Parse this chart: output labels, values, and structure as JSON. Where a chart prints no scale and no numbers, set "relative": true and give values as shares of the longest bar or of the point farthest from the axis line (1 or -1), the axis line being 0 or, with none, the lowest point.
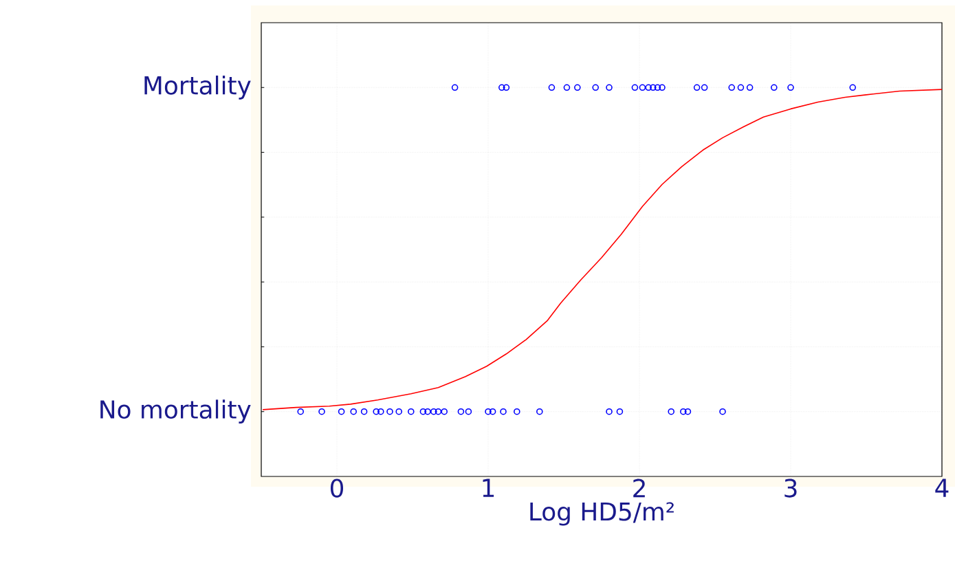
{
  "chart_data": {
    "type": "scatter",
    "xlabel": "Log HD5/m²",
    "xlim": [
      -0.5,
      4
    ],
    "xticks": [
      0,
      1,
      2,
      3,
      4
    ],
    "relative": true,
    "annotations": [
      "Mortality",
      "No mortality"
    ],
    "grid": true,
    "marker": "circle",
    "series": [
      {
        "color": "#0000ff",
        "x": [
          0.78,
          1.09,
          1.12,
          1.42,
          1.52,
          1.59,
          1.71,
          1.8,
          1.97,
          2.02,
          2.06,
          2.09,
          2.12,
          2.15,
          2.38,
          2.43,
          2.61,
          2.67,
          2.73,
          2.89,
          3.0,
          3.41,
          -0.24,
          -0.1,
          0.03,
          0.11,
          0.18,
          0.26,
          0.29,
          0.35,
          0.41,
          0.49,
          0.57,
          0.6,
          0.64,
          0.67,
          0.71,
          0.82,
          0.87,
          1.0,
          1.03,
          1.1,
          1.19,
          1.34,
          1.8,
          1.87,
          2.21,
          2.29,
          2.32,
          2.55
        ],
        "values": [
          1,
          1,
          1,
          1,
          1,
          1,
          1,
          1,
          1,
          1,
          1,
          1,
          1,
          1,
          1,
          1,
          1,
          1,
          1,
          1,
          1,
          1,
          0,
          0,
          0,
          0,
          0,
          0,
          0,
          0,
          0,
          0,
          0,
          0,
          0,
          0,
          0,
          0,
          0,
          0,
          0,
          0,
          0,
          0,
          0,
          0,
          0,
          0,
          0,
          0
        ]
      },
      {
        "type": "line",
        "color": "#ff0000",
        "marker": "none",
        "x": [
          -0.49,
          -0.27,
          -0.05,
          0.09,
          0.27,
          0.49,
          0.67,
          0.85,
          0.99,
          1.12,
          1.25,
          1.39,
          1.48,
          1.61,
          1.75,
          1.88,
          2.02,
          2.15,
          2.28,
          2.42,
          2.55,
          2.69,
          2.82,
          3.0,
          3.18,
          3.36,
          3.49,
          3.72,
          4.0
        ],
        "values": [
          0.006,
          0.013,
          0.017,
          0.023,
          0.036,
          0.055,
          0.074,
          0.108,
          0.14,
          0.178,
          0.222,
          0.28,
          0.335,
          0.405,
          0.475,
          0.547,
          0.633,
          0.701,
          0.756,
          0.807,
          0.845,
          0.879,
          0.909,
          0.934,
          0.955,
          0.97,
          0.977,
          0.989,
          0.994
        ]
      }
    ]
  }
}
